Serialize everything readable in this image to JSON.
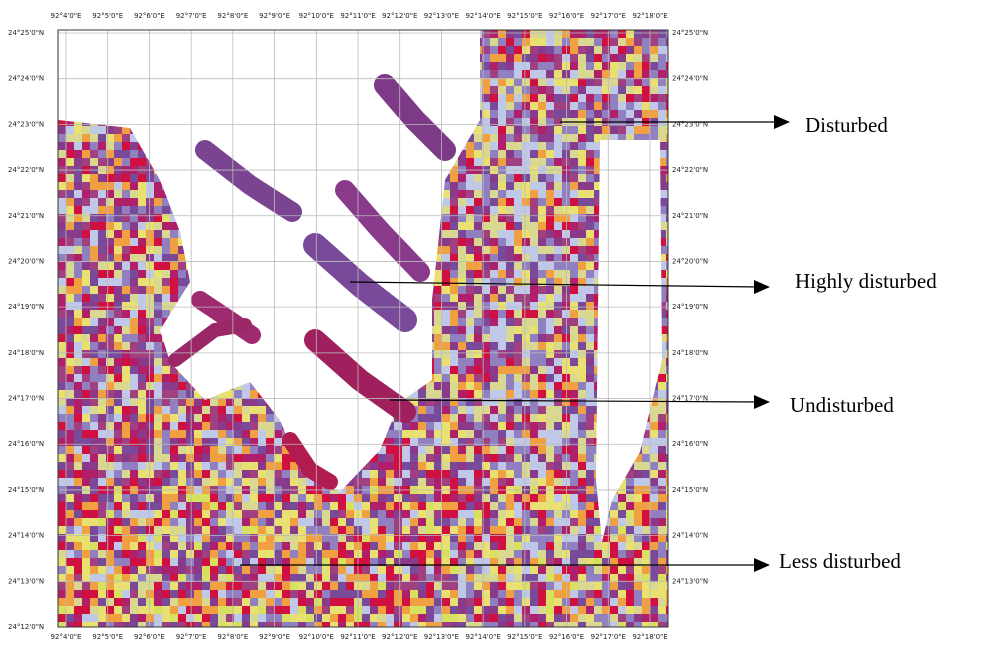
{
  "map": {
    "longitudes": [
      "92°4'0\"E",
      "92°5'0\"E",
      "92°6'0\"E",
      "92°7'0\"E",
      "92°8'0\"E",
      "92°9'0\"E",
      "92°10'0\"E",
      "92°11'0\"E",
      "92°12'0\"E",
      "92°13'0\"E",
      "92°14'0\"E",
      "92°15'0\"E",
      "92°16'0\"E",
      "92°17'0\"E",
      "92°18'0\"E"
    ],
    "latitudes": [
      "24°25'0\"N",
      "24°24'0\"N",
      "24°23'0\"N",
      "24°22'0\"N",
      "24°21'0\"N",
      "24°20'0\"N",
      "24°19'0\"N",
      "24°18'0\"N",
      "24°17'0\"N",
      "24°16'0\"N",
      "24°15'0\"N",
      "24°14'0\"N",
      "24°13'0\"N",
      "24°12'0\"N"
    ],
    "annotations": [
      "Disturbed",
      "Highly disturbed",
      "Undisturbed",
      "Less disturbed"
    ]
  }
}
